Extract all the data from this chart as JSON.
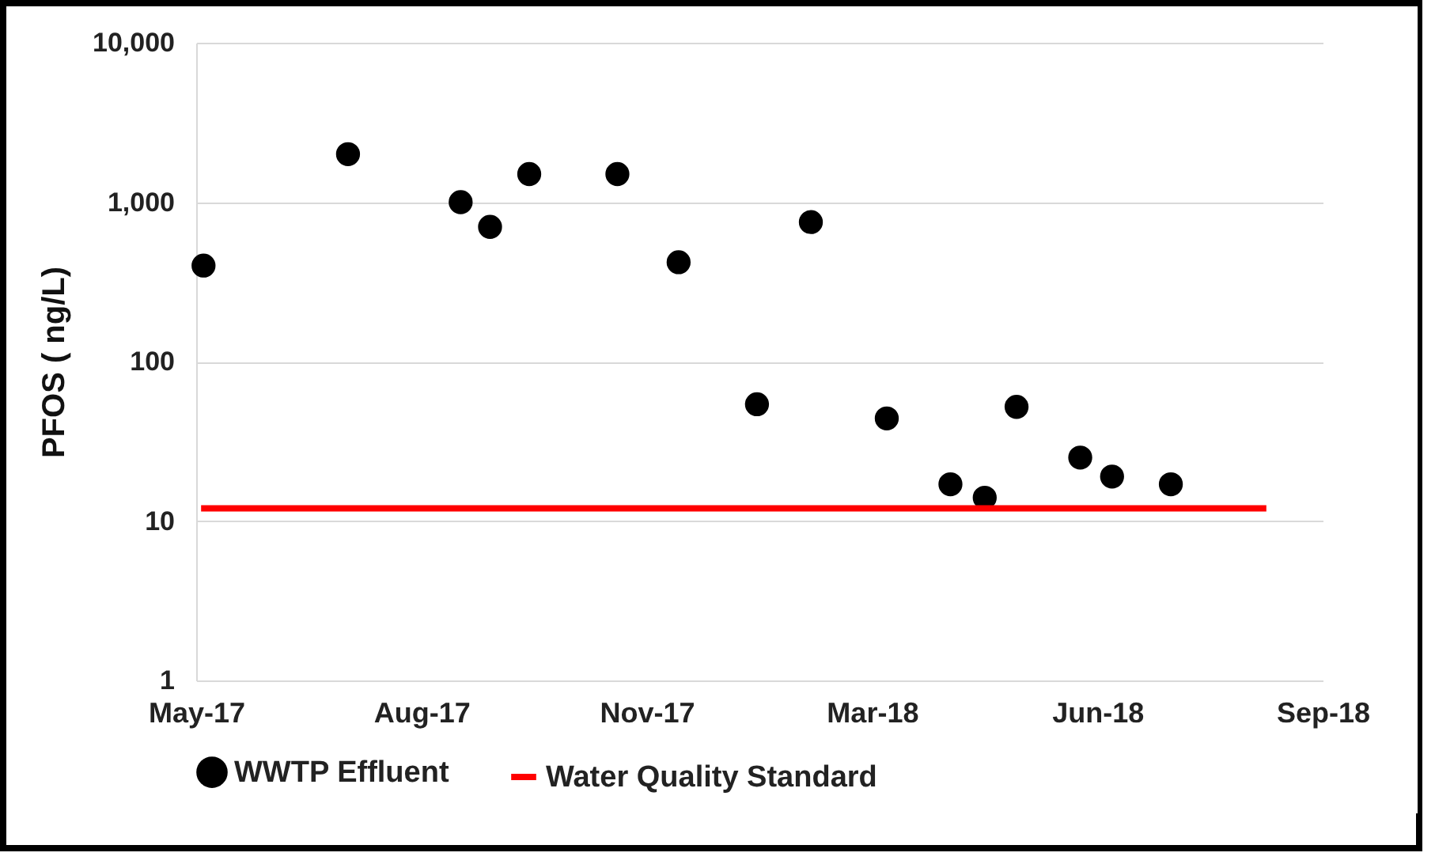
{
  "chart_data": {
    "type": "scatter",
    "ylabel": "PFOS ( ng/L)",
    "log": "y",
    "grid": "y",
    "legend": "bottom",
    "xlim": [
      "2017-05-30",
      "2018-09-02"
    ],
    "xticks": [
      {
        "value": "2017-05-30",
        "label": "May-17"
      },
      {
        "value": "2017-08-30",
        "label": "Aug-17"
      },
      {
        "value": "2017-11-30",
        "label": "Nov-17"
      },
      {
        "value": "2018-03-02",
        "label": "Mar-18"
      },
      {
        "value": "2018-06-02",
        "label": "Jun-18"
      },
      {
        "value": "2018-09-02",
        "label": "Sep-18"
      }
    ],
    "ylim": [
      1,
      10000
    ],
    "yticks": [
      1,
      10,
      100,
      {
        "value": 1000,
        "label": "1,000"
      },
      {
        "value": 10000,
        "label": "10,000"
      }
    ],
    "series": [
      {
        "name": "WWTP Effluent",
        "marker": "circle",
        "color": "#000000",
        "x": [
          "2017-06-02",
          "2017-07-31",
          "2017-09-15",
          "2017-09-27",
          "2017-10-13",
          "2017-11-18",
          "2017-12-13",
          "2018-01-14",
          "2018-02-05",
          "2018-03-08",
          "2018-04-03",
          "2018-04-17",
          "2018-04-30",
          "2018-05-26",
          "2018-06-08",
          "2018-07-02"
        ],
        "values": [
          400,
          2000,
          1000,
          700,
          1500,
          1500,
          420,
          54,
          750,
          44,
          17,
          14,
          52,
          25,
          19,
          17
        ]
      },
      {
        "name": "Water Quality Standard",
        "type": "line",
        "marker": "none",
        "color": "#ff0000",
        "x": [
          "2017-06-01",
          "2018-08-10"
        ],
        "values": [
          12,
          12
        ]
      }
    ]
  }
}
